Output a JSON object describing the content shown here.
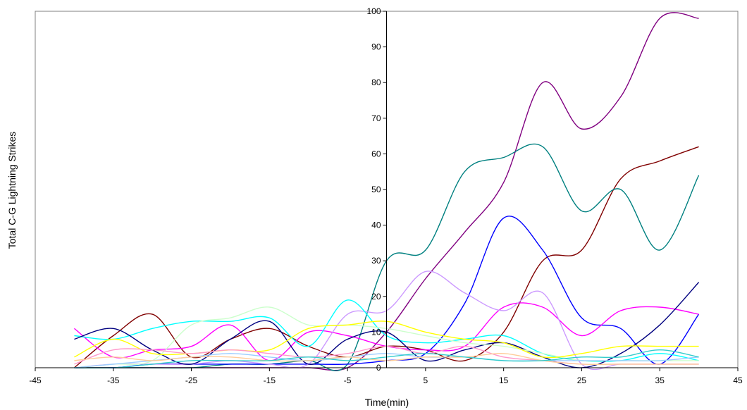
{
  "chart_data": {
    "type": "line",
    "title": "",
    "xlabel": "Time(min)",
    "ylabel": "Total C-G Lightning Strikes",
    "xlim": [
      -45,
      45
    ],
    "ylim": [
      0,
      100
    ],
    "xticks": [
      -45,
      -35,
      -25,
      -15,
      -5,
      5,
      15,
      25,
      35,
      45
    ],
    "yticks": [
      0,
      10,
      20,
      30,
      40,
      50,
      60,
      70,
      80,
      90,
      100
    ],
    "grid": false,
    "legend": "none",
    "x": [
      -40,
      -35,
      -30,
      -25,
      -20,
      -15,
      -10,
      -5,
      0,
      5,
      10,
      15,
      20,
      25,
      30,
      35,
      40
    ],
    "series": [
      {
        "color": "#800080",
        "values": [
          0,
          0,
          0,
          0,
          0,
          0,
          0,
          0,
          10,
          25,
          38,
          52,
          80,
          67,
          76,
          98,
          98
        ]
      },
      {
        "color": "#800000",
        "values": [
          0,
          9,
          15,
          3,
          8,
          11,
          6,
          3,
          6,
          5,
          2,
          10,
          30,
          33,
          53,
          58,
          62
        ]
      },
      {
        "color": "#008080",
        "values": [
          0,
          0,
          0,
          0,
          1,
          1,
          2,
          1,
          30,
          33,
          55,
          59,
          62,
          44,
          50,
          33,
          54
        ]
      },
      {
        "color": "#0000FF",
        "values": [
          0,
          0,
          1,
          1,
          1,
          1,
          1,
          1,
          2,
          4,
          18,
          42,
          33,
          14,
          11,
          1,
          15
        ]
      },
      {
        "color": "#FF00FF",
        "values": [
          11,
          3,
          5,
          6,
          12,
          2,
          10,
          9,
          6,
          5,
          6,
          17,
          17,
          9,
          16,
          17,
          15
        ]
      },
      {
        "color": "#CC99FF",
        "values": [
          0,
          1,
          1,
          1,
          2,
          1,
          1,
          15,
          16,
          27,
          21,
          16,
          21,
          1,
          1,
          1,
          1
        ]
      },
      {
        "color": "#00FFFF",
        "values": [
          9,
          8,
          11,
          13,
          13,
          14,
          6,
          19,
          9,
          7,
          8,
          9,
          4,
          2,
          2,
          4,
          2
        ]
      },
      {
        "color": "#000080",
        "values": [
          8,
          11,
          5,
          1,
          8,
          13,
          1,
          8,
          10,
          2,
          5,
          7,
          3,
          0,
          4,
          12,
          24
        ]
      },
      {
        "color": "#CCFFCC",
        "values": [
          0,
          1,
          2,
          12,
          14,
          17,
          12,
          12,
          11,
          9,
          7,
          6,
          4,
          2,
          2,
          2,
          2
        ]
      },
      {
        "color": "#FFFF00",
        "values": [
          3,
          8,
          4,
          4,
          5,
          5,
          11,
          12,
          13,
          10,
          8,
          7,
          3,
          4,
          6,
          6,
          6
        ]
      },
      {
        "color": "#FF99CC",
        "values": [
          1,
          5,
          5,
          4,
          5,
          4,
          3,
          4,
          6,
          4,
          6,
          3,
          2,
          1,
          1,
          1,
          1
        ]
      },
      {
        "color": "#99CCFF",
        "values": [
          0,
          1,
          2,
          3,
          4,
          3,
          2,
          3,
          4,
          3,
          3,
          2,
          2,
          2,
          2,
          2,
          3
        ]
      },
      {
        "color": "#FFCC99",
        "values": [
          2,
          3,
          2,
          3,
          3,
          2,
          2,
          3,
          2,
          3,
          3,
          4,
          2,
          1,
          1,
          1,
          1
        ]
      },
      {
        "color": "#33CCCC",
        "values": [
          0,
          0,
          1,
          2,
          2,
          2,
          3,
          2,
          3,
          4,
          3,
          2,
          2,
          3,
          3,
          5,
          3
        ]
      }
    ]
  }
}
